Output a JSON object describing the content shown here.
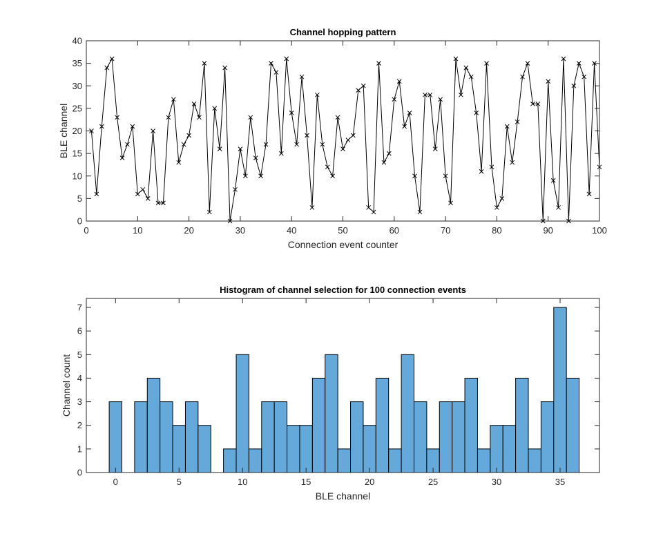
{
  "chart_data": [
    {
      "type": "line",
      "title": "Channel hopping pattern",
      "xlabel": "Connection event counter",
      "ylabel": "BLE channel",
      "xlim": [
        0,
        100
      ],
      "ylim": [
        0,
        40
      ],
      "xticks": [
        0,
        10,
        20,
        30,
        40,
        50,
        60,
        70,
        80,
        90,
        100
      ],
      "yticks": [
        0,
        5,
        10,
        15,
        20,
        25,
        30,
        35,
        40
      ],
      "xtick_labels": [
        "0",
        "10",
        "20",
        "30",
        "40",
        "50",
        "60",
        "70",
        "80",
        "90",
        "100"
      ],
      "ytick_labels": [
        "0",
        "5",
        "10",
        "15",
        "20",
        "25",
        "30",
        "35",
        "40"
      ],
      "grid": false,
      "marker": "x",
      "line_color": "#000000",
      "x": [
        1,
        2,
        3,
        4,
        5,
        6,
        7,
        8,
        9,
        10,
        11,
        12,
        13,
        14,
        15,
        16,
        17,
        18,
        19,
        20,
        21,
        22,
        23,
        24,
        25,
        26,
        27,
        28,
        29,
        30,
        31,
        32,
        33,
        34,
        35,
        36,
        37,
        38,
        39,
        40,
        41,
        42,
        43,
        44,
        45,
        46,
        47,
        48,
        49,
        50,
        51,
        52,
        53,
        54,
        55,
        56,
        57,
        58,
        59,
        60,
        61,
        62,
        63,
        64,
        65,
        66,
        67,
        68,
        69,
        70,
        71,
        72,
        73,
        74,
        75,
        76,
        77,
        78,
        79,
        80,
        81,
        82,
        83,
        84,
        85,
        86,
        87,
        88,
        89,
        90,
        91,
        92,
        93,
        94,
        95,
        96,
        97,
        98,
        99,
        100
      ],
      "y": [
        20,
        6,
        21,
        34,
        36,
        23,
        14,
        17,
        21,
        6,
        7,
        5,
        20,
        4,
        4,
        23,
        27,
        13,
        17,
        19,
        26,
        23,
        35,
        2,
        25,
        16,
        34,
        0,
        7,
        16,
        10,
        23,
        14,
        10,
        17,
        35,
        33,
        15,
        36,
        24,
        17,
        32,
        19,
        3,
        28,
        17,
        12,
        10,
        23,
        16,
        18,
        19,
        29,
        30,
        3,
        2,
        35,
        13,
        15,
        27,
        31,
        21,
        24,
        10,
        2,
        28,
        28,
        16,
        27,
        10,
        4,
        36,
        28,
        34,
        32,
        24,
        11,
        35,
        12,
        3,
        5,
        21,
        13,
        22,
        32,
        35,
        26,
        26,
        0,
        31,
        9,
        3,
        36,
        0,
        30,
        35,
        32,
        6,
        35,
        12
      ]
    },
    {
      "type": "bar",
      "title": "Histogram of channel selection for 100 connection events",
      "xlabel": "BLE channel",
      "ylabel": "Channel count",
      "xlim": [
        -2.3,
        38.1
      ],
      "ylim": [
        0,
        7.38
      ],
      "xticks": [
        0,
        5,
        10,
        15,
        20,
        25,
        30,
        35
      ],
      "yticks": [
        0,
        1,
        2,
        3,
        4,
        5,
        6,
        7
      ],
      "xtick_labels": [
        "0",
        "5",
        "10",
        "15",
        "20",
        "25",
        "30",
        "35"
      ],
      "ytick_labels": [
        "0",
        "1",
        "2",
        "3",
        "4",
        "5",
        "6",
        "7"
      ],
      "grid": false,
      "bar_color": "#64a9d9",
      "edge_color": "#000000",
      "categories": [
        0,
        1,
        2,
        3,
        4,
        5,
        6,
        7,
        8,
        9,
        10,
        11,
        12,
        13,
        14,
        15,
        16,
        17,
        18,
        19,
        20,
        21,
        22,
        23,
        24,
        25,
        26,
        27,
        28,
        29,
        30,
        31,
        32,
        33,
        34,
        35,
        36
      ],
      "values": [
        3,
        0,
        3,
        4,
        3,
        2,
        3,
        2,
        0,
        1,
        5,
        1,
        3,
        3,
        2,
        2,
        4,
        5,
        1,
        3,
        2,
        4,
        1,
        5,
        3,
        1,
        3,
        3,
        4,
        1,
        2,
        2,
        4,
        1,
        3,
        7,
        4
      ]
    }
  ]
}
